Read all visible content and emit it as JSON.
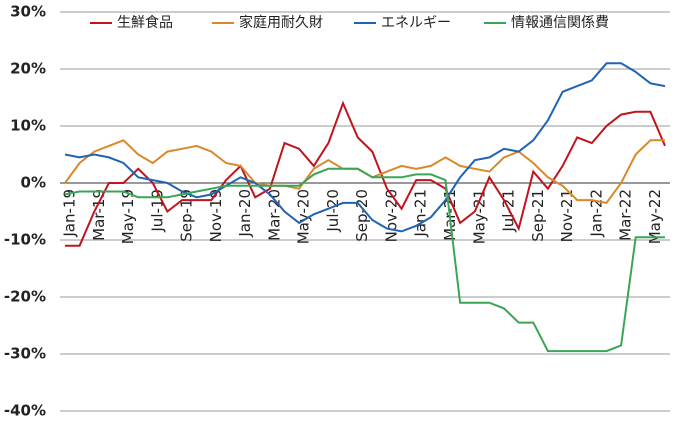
{
  "chart_data": {
    "type": "line",
    "categories": [
      "Jan-19",
      null,
      "Mar-19",
      null,
      "May-19",
      null,
      "Jul-19",
      null,
      "Sep-19",
      null,
      "Nov-19",
      null,
      "Jan-20",
      null,
      "Mar-20",
      null,
      "May-20",
      null,
      "Jul-20",
      null,
      "Sep-20",
      null,
      "Nov-20",
      null,
      "Jan-21",
      null,
      "Mar-21",
      null,
      "May-21",
      null,
      "Jul-21",
      null,
      "Sep-21",
      null,
      "Nov-21",
      null,
      "Jan-22",
      null,
      "Mar-22",
      null,
      "May-22",
      null
    ],
    "series": [
      {
        "name": "生鮮食品",
        "color": "#c0141e",
        "values": [
          -11,
          -11,
          -5,
          0,
          0,
          2.5,
          0,
          -5,
          -3,
          -3,
          -3,
          0.5,
          3,
          -2.5,
          -1,
          7,
          6,
          3,
          7,
          14,
          8,
          5.5,
          -1,
          -4.5,
          0.5,
          0.5,
          -1,
          -7,
          -5,
          1,
          -3,
          -8,
          2,
          -1,
          3,
          8,
          7,
          10,
          12,
          12.5,
          12.5,
          6.5
        ]
      },
      {
        "name": "家庭用耐久財",
        "color": "#d9892a",
        "values": [
          0,
          3.5,
          5.5,
          6.5,
          7.5,
          5,
          3.5,
          5.5,
          6,
          6.5,
          5.5,
          3.5,
          3,
          0,
          -0.5,
          -0.5,
          -1,
          2.5,
          4,
          2.5,
          2.5,
          1,
          2,
          3,
          2.5,
          3,
          4.5,
          3,
          2.5,
          2,
          4.5,
          5.5,
          3.5,
          1,
          -0.5,
          -3,
          -3,
          -3.5,
          0,
          5,
          7.5,
          7.5
        ]
      },
      {
        "name": "エネルギー",
        "color": "#1f64b4",
        "values": [
          5,
          4.5,
          5,
          4.5,
          3.5,
          1,
          0.5,
          0,
          -1.5,
          -2.5,
          -2,
          -0.5,
          1,
          0,
          -2,
          -5,
          -7,
          -5.5,
          -4.5,
          -3.5,
          -3.5,
          -6.5,
          -8,
          -8.5,
          -7.5,
          -6,
          -3,
          1,
          4,
          4.5,
          6,
          5.5,
          7.5,
          11,
          16,
          17,
          18,
          21,
          21,
          19.5,
          17.5,
          17
        ]
      },
      {
        "name": "情報通信関係費",
        "color": "#3aa655",
        "values": [
          -2,
          -1.5,
          -1.5,
          -1.5,
          -1.5,
          -2.5,
          -2.5,
          -2.5,
          -2,
          -1.5,
          -1,
          -0.5,
          -0.5,
          -0.5,
          -0.5,
          -0.5,
          -0.5,
          1.5,
          2.5,
          2.5,
          2.5,
          1,
          1,
          1,
          1.5,
          1.5,
          0.5,
          -21,
          -21,
          -21,
          -22,
          -24.5,
          -24.5,
          -29.5,
          -29.5,
          -29.5,
          -29.5,
          -29.5,
          -28.5,
          -9.5,
          -9.5,
          -9.5
        ]
      }
    ],
    "ylim": [
      -40,
      30
    ],
    "yticks": [
      {
        "value": -40,
        "label": "-40%"
      },
      {
        "value": -30,
        "label": "-30%"
      },
      {
        "value": -20,
        "label": "-20%"
      },
      {
        "value": -10,
        "label": "-10%"
      },
      {
        "value": 0,
        "label": "0%"
      },
      {
        "value": 10,
        "label": "10%"
      },
      {
        "value": 20,
        "label": "20%"
      },
      {
        "value": 30,
        "label": "30%"
      }
    ],
    "grid": true,
    "legend": "top"
  }
}
